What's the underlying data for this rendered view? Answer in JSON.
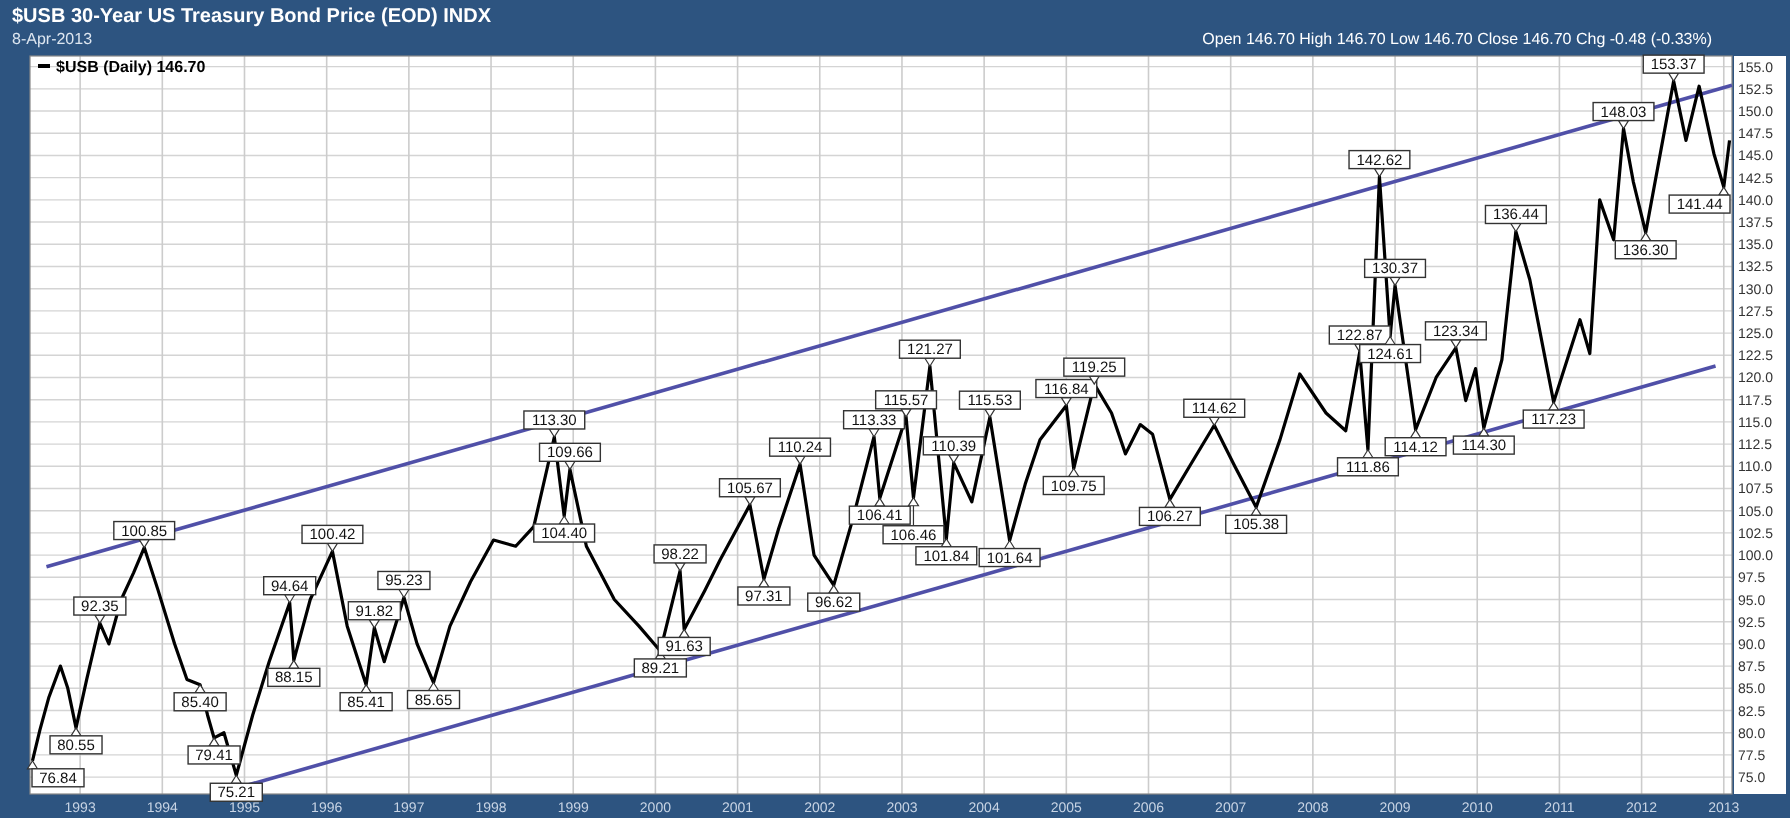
{
  "chart_data": {
    "type": "line",
    "title": "$USB 30-Year US Treasury Bond Price (EOD) INDX",
    "subtitle": "8-Apr-2013",
    "legend": "top left",
    "grid": true,
    "xlim": [
      1992.39,
      2013.1
    ],
    "xticks": [
      1993,
      1994,
      1995,
      1996,
      1997,
      1998,
      1999,
      2000,
      2001,
      2002,
      2003,
      2004,
      2005,
      2006,
      2007,
      2008,
      2009,
      2010,
      2011,
      2012,
      2013
    ],
    "ylim": [
      73.1,
      156.2
    ],
    "yticks": [
      {
        "value": 75,
        "label": "75.0"
      },
      {
        "value": 77.5,
        "label": "77.5"
      },
      {
        "value": 80,
        "label": "80.0"
      },
      {
        "value": 82.5,
        "label": "82.5"
      },
      {
        "value": 85,
        "label": "85.0"
      },
      {
        "value": 87.5,
        "label": "87.5"
      },
      {
        "value": 90,
        "label": "90.0"
      },
      {
        "value": 92.5,
        "label": "92.5"
      },
      {
        "value": 95,
        "label": "95.0"
      },
      {
        "value": 97.5,
        "label": "97.5"
      },
      {
        "value": 100,
        "label": "100.0"
      },
      {
        "value": 102.5,
        "label": "102.5"
      },
      {
        "value": 105,
        "label": "105.0"
      },
      {
        "value": 107.5,
        "label": "107.5"
      },
      {
        "value": 110,
        "label": "110.0"
      },
      {
        "value": 112.5,
        "label": "112.5"
      },
      {
        "value": 115,
        "label": "115.0"
      },
      {
        "value": 117.5,
        "label": "117.5"
      },
      {
        "value": 120,
        "label": "120.0"
      },
      {
        "value": 122.5,
        "label": "122.5"
      },
      {
        "value": 125,
        "label": "125.0"
      },
      {
        "value": 127.5,
        "label": "127.5"
      },
      {
        "value": 130,
        "label": "130.0"
      },
      {
        "value": 132.5,
        "label": "132.5"
      },
      {
        "value": 135,
        "label": "135.0"
      },
      {
        "value": 137.5,
        "label": "137.5"
      },
      {
        "value": 140,
        "label": "140.0"
      },
      {
        "value": 142.5,
        "label": "142.5"
      },
      {
        "value": 145,
        "label": "145.0"
      },
      {
        "value": 147.5,
        "label": "147.5"
      },
      {
        "value": 150,
        "label": "150.0"
      },
      {
        "value": 152.5,
        "label": "152.5"
      },
      {
        "value": 155,
        "label": "155.0"
      }
    ],
    "series": [
      {
        "name": "$USB (Daily) 146.70",
        "color": "#000000",
        "x": [
          1992.42,
          1992.51,
          1992.62,
          1992.76,
          1992.85,
          1992.95,
          1993.08,
          1993.24,
          1993.35,
          1993.5,
          1993.65,
          1993.78,
          1993.95,
          1994.15,
          1994.3,
          1994.46,
          1994.55,
          1994.63,
          1994.75,
          1994.9,
          1995.1,
          1995.3,
          1995.45,
          1995.55,
          1995.6,
          1995.8,
          1995.95,
          1996.07,
          1996.25,
          1996.48,
          1996.58,
          1996.7,
          1996.94,
          1997.1,
          1997.3,
          1997.5,
          1997.75,
          1998.03,
          1998.3,
          1998.52,
          1998.77,
          1998.89,
          1998.96,
          1999.16,
          1999.5,
          1999.8,
          2000.06,
          2000.3,
          2000.35,
          2000.6,
          2000.79,
          2001.15,
          2001.32,
          2001.5,
          2001.76,
          2001.93,
          2002.17,
          2002.4,
          2002.66,
          2002.73,
          2003.05,
          2003.14,
          2003.34,
          2003.54,
          2003.63,
          2003.85,
          2004.07,
          2004.31,
          2004.5,
          2004.68,
          2005.0,
          2005.09,
          2005.34,
          2005.55,
          2005.72,
          2005.9,
          2006.05,
          2006.26,
          2006.5,
          2006.8,
          2007.05,
          2007.31,
          2007.6,
          2007.84,
          2008.16,
          2008.4,
          2008.57,
          2008.67,
          2008.81,
          2008.94,
          2009.0,
          2009.25,
          2009.5,
          2009.74,
          2009.86,
          2009.98,
          2010.08,
          2010.3,
          2010.47,
          2010.64,
          2010.93,
          2011.25,
          2011.37,
          2011.49,
          2011.66,
          2011.78,
          2011.9,
          2012.05,
          2012.39,
          2012.54,
          2012.7,
          2012.88,
          2013.0,
          2013.07
        ],
        "values": [
          76.84,
          80.3,
          84,
          87.5,
          85,
          80.55,
          86,
          92.35,
          90,
          95,
          98,
          100.85,
          96,
          90,
          86,
          85.4,
          82,
          79.41,
          80,
          75.21,
          82,
          88,
          92,
          94.64,
          88.15,
          95,
          98,
          100.42,
          92,
          85.41,
          91.82,
          88,
          95.23,
          90,
          85.65,
          92,
          97,
          101.7,
          101,
          103.2,
          113.3,
          104.4,
          109.66,
          101,
          95,
          92,
          89.21,
          98.22,
          91.63,
          96,
          99.5,
          105.67,
          97.31,
          103,
          110.24,
          100,
          96.62,
          104,
          113.33,
          106.41,
          115.57,
          106.46,
          121.27,
          101.84,
          110.39,
          106,
          115.53,
          101.64,
          108,
          113,
          116.84,
          109.75,
          119.25,
          116,
          111.4,
          114.7,
          113.6,
          106.27,
          110,
          114.62,
          110,
          105.38,
          113,
          120.4,
          116,
          114,
          122.87,
          111.86,
          142.62,
          124.61,
          130.37,
          114.12,
          120,
          123.34,
          117.4,
          121,
          114.3,
          122,
          136.44,
          131,
          117.23,
          126.5,
          122.7,
          140,
          135.5,
          148.03,
          142,
          136.3,
          153.37,
          146.7,
          152.8,
          145.2,
          141.44,
          146.7
        ]
      },
      {
        "type": "line",
        "color": "#5050a8",
        "x": [
          1992.59,
          2013.1
        ],
        "values": [
          98.7,
          152.9
        ]
      },
      {
        "type": "line",
        "color": "#5050a8",
        "x": [
          1995.0,
          2012.9
        ],
        "values": [
          74.0,
          121.3
        ]
      }
    ],
    "annotations": [
      "Open 146.70 High 146.70 Low 146.70 Close 146.70 Chg -0.48 (-0.33%)",
      {
        "text": "76.84",
        "x": 1992.42,
        "y": 76.84
      },
      {
        "text": "80.55",
        "x": 1992.95,
        "y": 80.55
      },
      {
        "text": "92.35",
        "x": 1993.24,
        "y": 92.35
      },
      {
        "text": "100.85",
        "x": 1993.78,
        "y": 100.85
      },
      {
        "text": "85.40",
        "x": 1994.46,
        "y": 85.4
      },
      {
        "text": "79.41",
        "x": 1994.63,
        "y": 79.41
      },
      {
        "text": "75.21",
        "x": 1994.9,
        "y": 75.21
      },
      {
        "text": "94.64",
        "x": 1995.55,
        "y": 94.64
      },
      {
        "text": "88.15",
        "x": 1995.6,
        "y": 88.15
      },
      {
        "text": "100.42",
        "x": 1996.07,
        "y": 100.42
      },
      {
        "text": "85.41",
        "x": 1996.48,
        "y": 85.41
      },
      {
        "text": "91.82",
        "x": 1996.58,
        "y": 91.82
      },
      {
        "text": "95.23",
        "x": 1996.94,
        "y": 95.23
      },
      {
        "text": "85.65",
        "x": 1997.3,
        "y": 85.65
      },
      {
        "text": "113.30",
        "x": 1998.77,
        "y": 113.3
      },
      {
        "text": "104.40",
        "x": 1998.89,
        "y": 104.4
      },
      {
        "text": "109.66",
        "x": 1998.96,
        "y": 109.66
      },
      {
        "text": "89.21",
        "x": 2000.06,
        "y": 89.21
      },
      {
        "text": "98.22",
        "x": 2000.3,
        "y": 98.22
      },
      {
        "text": "91.63",
        "x": 2000.35,
        "y": 91.63
      },
      {
        "text": "105.67",
        "x": 2001.15,
        "y": 105.67
      },
      {
        "text": "97.31",
        "x": 2001.32,
        "y": 97.31
      },
      {
        "text": "110.24",
        "x": 2001.76,
        "y": 110.24
      },
      {
        "text": "96.62",
        "x": 2002.17,
        "y": 96.62
      },
      {
        "text": "113.33",
        "x": 2002.66,
        "y": 113.33
      },
      {
        "text": "106.41",
        "x": 2002.73,
        "y": 106.41
      },
      {
        "text": "115.57",
        "x": 2003.05,
        "y": 115.57
      },
      {
        "text": "106.46",
        "x": 2003.14,
        "y": 106.46
      },
      {
        "text": "121.27",
        "x": 2003.34,
        "y": 121.27
      },
      {
        "text": "101.84",
        "x": 2003.54,
        "y": 101.84
      },
      {
        "text": "110.39",
        "x": 2003.63,
        "y": 110.39
      },
      {
        "text": "115.53",
        "x": 2004.07,
        "y": 115.53
      },
      {
        "text": "101.64",
        "x": 2004.31,
        "y": 101.64
      },
      {
        "text": "116.84",
        "x": 2005.0,
        "y": 116.84
      },
      {
        "text": "109.75",
        "x": 2005.09,
        "y": 109.75
      },
      {
        "text": "119.25",
        "x": 2005.34,
        "y": 119.25
      },
      {
        "text": "106.27",
        "x": 2006.26,
        "y": 106.27
      },
      {
        "text": "114.62",
        "x": 2006.8,
        "y": 114.62
      },
      {
        "text": "105.38",
        "x": 2007.31,
        "y": 105.38
      },
      {
        "text": "122.87",
        "x": 2008.57,
        "y": 122.87
      },
      {
        "text": "111.86",
        "x": 2008.67,
        "y": 111.86
      },
      {
        "text": "142.62",
        "x": 2008.81,
        "y": 142.62
      },
      {
        "text": "124.61",
        "x": 2008.94,
        "y": 124.61
      },
      {
        "text": "130.37",
        "x": 2009.0,
        "y": 130.37
      },
      {
        "text": "114.12",
        "x": 2009.25,
        "y": 114.12
      },
      {
        "text": "123.34",
        "x": 2009.74,
        "y": 123.34
      },
      {
        "text": "114.30",
        "x": 2010.08,
        "y": 114.3
      },
      {
        "text": "136.44",
        "x": 2010.47,
        "y": 136.44
      },
      {
        "text": "117.23",
        "x": 2010.93,
        "y": 117.23
      },
      {
        "text": "148.03",
        "x": 2011.78,
        "y": 148.03
      },
      {
        "text": "136.30",
        "x": 2012.05,
        "y": 136.3
      },
      {
        "text": "153.37",
        "x": 2012.39,
        "y": 153.37
      },
      {
        "text": "141.44",
        "x": 2013.0,
        "y": 141.44
      }
    ]
  }
}
